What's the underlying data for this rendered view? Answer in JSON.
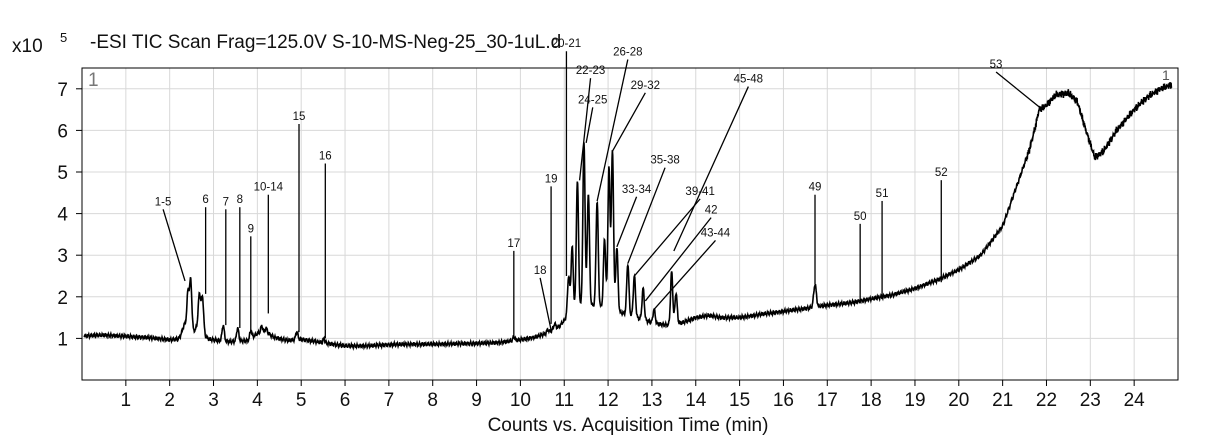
{
  "chart_data": {
    "type": "line",
    "title": "-ESI TIC Scan Frag=125.0V S-10-MS-Neg-25_30-1uL.d",
    "y_multiplier": "x10",
    "y_multiplier_exp": "5",
    "xlabel": "Counts vs. Acquisition Time (min)",
    "ylabel": "",
    "corner_label_left": "1",
    "corner_label_right": "1",
    "xlim": [
      0,
      25
    ],
    "ylim": [
      0,
      7.5
    ],
    "x_ticks": [
      1,
      2,
      3,
      4,
      5,
      6,
      7,
      8,
      9,
      10,
      11,
      12,
      13,
      14,
      15,
      16,
      17,
      18,
      19,
      20,
      21,
      22,
      23,
      24
    ],
    "y_ticks": [
      1,
      2,
      3,
      4,
      5,
      6,
      7
    ],
    "grid": true,
    "line_color": "#000000",
    "baseline": [
      [
        0.05,
        1.06
      ],
      [
        0.5,
        1.08
      ],
      [
        1.0,
        1.05
      ],
      [
        1.5,
        1.02
      ],
      [
        2.0,
        0.97
      ],
      [
        2.2,
        0.98
      ],
      [
        2.45,
        1.1
      ],
      [
        2.6,
        1.22
      ],
      [
        2.9,
        0.98
      ],
      [
        3.1,
        0.95
      ],
      [
        3.4,
        0.92
      ],
      [
        3.8,
        0.95
      ],
      [
        4.0,
        1.12
      ],
      [
        4.2,
        1.15
      ],
      [
        4.4,
        1.02
      ],
      [
        4.7,
        0.95
      ],
      [
        5.0,
        0.98
      ],
      [
        5.3,
        0.93
      ],
      [
        5.6,
        0.88
      ],
      [
        6.0,
        0.82
      ],
      [
        6.5,
        0.82
      ],
      [
        7.0,
        0.85
      ],
      [
        7.5,
        0.86
      ],
      [
        8.0,
        0.86
      ],
      [
        8.5,
        0.87
      ],
      [
        9.0,
        0.88
      ],
      [
        9.5,
        0.9
      ],
      [
        9.8,
        0.94
      ],
      [
        10.0,
        0.97
      ],
      [
        10.3,
        1.02
      ],
      [
        10.6,
        1.12
      ],
      [
        10.9,
        1.3
      ],
      [
        11.05,
        1.5
      ],
      [
        11.3,
        1.75
      ],
      [
        11.6,
        1.8
      ],
      [
        11.9,
        1.75
      ],
      [
        12.2,
        1.65
      ],
      [
        12.5,
        1.55
      ],
      [
        12.8,
        1.45
      ],
      [
        13.1,
        1.35
      ],
      [
        13.4,
        1.32
      ],
      [
        13.7,
        1.38
      ],
      [
        14.0,
        1.5
      ],
      [
        14.3,
        1.55
      ],
      [
        14.6,
        1.5
      ],
      [
        15.0,
        1.5
      ],
      [
        15.5,
        1.58
      ],
      [
        16.0,
        1.65
      ],
      [
        16.5,
        1.72
      ],
      [
        17.0,
        1.8
      ],
      [
        17.5,
        1.85
      ],
      [
        18.0,
        1.95
      ],
      [
        18.5,
        2.05
      ],
      [
        19.0,
        2.2
      ],
      [
        19.5,
        2.4
      ],
      [
        20.0,
        2.65
      ],
      [
        20.5,
        3.0
      ],
      [
        21.0,
        3.7
      ],
      [
        21.3,
        4.6
      ],
      [
        21.6,
        5.5
      ],
      [
        21.85,
        6.5
      ],
      [
        22.0,
        6.6
      ],
      [
        22.2,
        6.85
      ],
      [
        22.5,
        6.9
      ],
      [
        22.7,
        6.7
      ],
      [
        22.9,
        6.0
      ],
      [
        23.1,
        5.35
      ],
      [
        23.3,
        5.5
      ],
      [
        23.6,
        6.0
      ],
      [
        24.0,
        6.5
      ],
      [
        24.3,
        6.8
      ],
      [
        24.6,
        7.0
      ],
      [
        24.85,
        7.1
      ]
    ],
    "peaks": [
      [
        2.35,
        1.35,
        0.12
      ],
      [
        2.42,
        1.98,
        0.05
      ],
      [
        2.48,
        2.35,
        0.05
      ],
      [
        2.68,
        2.07,
        0.06
      ],
      [
        2.75,
        1.95,
        0.05
      ],
      [
        3.22,
        1.32,
        0.05
      ],
      [
        3.55,
        1.25,
        0.05
      ],
      [
        3.85,
        1.18,
        0.05
      ],
      [
        4.1,
        1.3,
        0.05
      ],
      [
        4.2,
        1.25,
        0.05
      ],
      [
        4.9,
        1.15,
        0.05
      ],
      [
        5.52,
        1.0,
        0.04
      ],
      [
        9.85,
        1.05,
        0.04
      ],
      [
        10.62,
        1.2,
        0.05
      ],
      [
        10.78,
        1.35,
        0.05
      ],
      [
        11.1,
        2.5,
        0.05
      ],
      [
        11.18,
        3.2,
        0.05
      ],
      [
        11.3,
        4.8,
        0.05
      ],
      [
        11.45,
        5.7,
        0.05
      ],
      [
        11.55,
        4.5,
        0.05
      ],
      [
        11.75,
        4.3,
        0.05
      ],
      [
        11.92,
        3.4,
        0.05
      ],
      [
        12.02,
        5.1,
        0.05
      ],
      [
        12.1,
        5.5,
        0.05
      ],
      [
        12.2,
        3.2,
        0.05
      ],
      [
        12.45,
        2.8,
        0.05
      ],
      [
        12.6,
        2.5,
        0.05
      ],
      [
        12.8,
        2.2,
        0.05
      ],
      [
        13.05,
        1.7,
        0.05
      ],
      [
        13.45,
        2.6,
        0.05
      ],
      [
        13.55,
        2.1,
        0.05
      ],
      [
        14.45,
        1.5,
        0.08
      ],
      [
        16.72,
        2.3,
        0.06
      ],
      [
        17.75,
        1.85,
        0.05
      ],
      [
        18.25,
        1.95,
        0.05
      ],
      [
        19.05,
        2.1,
        0.05
      ],
      [
        19.62,
        2.35,
        0.05
      ],
      [
        21.2,
        4.1,
        0.05
      ],
      [
        21.82,
        6.45,
        0.06
      ]
    ],
    "annotations": [
      {
        "text": "1-5",
        "x": 1.85,
        "y": 4.2,
        "tx": 2.35,
        "ty": 2.38
      },
      {
        "text": "6",
        "x": 2.82,
        "y": 4.25,
        "tx": 2.82,
        "ty": 2.07
      },
      {
        "text": "7",
        "x": 3.28,
        "y": 4.2,
        "tx": 3.28,
        "ty": 1.32
      },
      {
        "text": "8",
        "x": 3.6,
        "y": 4.25,
        "tx": 3.6,
        "ty": 1.25
      },
      {
        "text": "9",
        "x": 3.85,
        "y": 3.55,
        "tx": 3.85,
        "ty": 1.18
      },
      {
        "text": "10-14",
        "x": 4.25,
        "y": 4.55,
        "tx": 4.25,
        "ty": 1.6
      },
      {
        "text": "15",
        "x": 4.95,
        "y": 6.25,
        "tx": 4.95,
        "ty": 1.15
      },
      {
        "text": "16",
        "x": 5.55,
        "y": 5.3,
        "tx": 5.55,
        "ty": 1.0
      },
      {
        "text": "17",
        "x": 9.85,
        "y": 3.2,
        "tx": 9.85,
        "ty": 1.05
      },
      {
        "text": "18",
        "x": 10.45,
        "y": 2.55,
        "tx": 10.7,
        "ty": 1.2
      },
      {
        "text": "19",
        "x": 10.7,
        "y": 4.75,
        "tx": 10.7,
        "ty": 1.35
      },
      {
        "text": "20-21",
        "x": 11.05,
        "y": 8.0,
        "tx": 11.05,
        "ty": 2.5
      },
      {
        "text": "22-23",
        "x": 11.6,
        "y": 7.35,
        "tx": 11.35,
        "ty": 4.8
      },
      {
        "text": "24-25",
        "x": 11.65,
        "y": 6.65,
        "tx": 11.5,
        "ty": 5.7
      },
      {
        "text": "26-28",
        "x": 12.45,
        "y": 7.8,
        "tx": 11.75,
        "ty": 4.3
      },
      {
        "text": "29-32",
        "x": 12.85,
        "y": 7.0,
        "tx": 12.1,
        "ty": 5.5
      },
      {
        "text": "33-34",
        "x": 12.65,
        "y": 4.5,
        "tx": 12.2,
        "ty": 3.2
      },
      {
        "text": "35-38",
        "x": 13.3,
        "y": 5.2,
        "tx": 12.45,
        "ty": 2.8
      },
      {
        "text": "39-41",
        "x": 14.1,
        "y": 4.45,
        "tx": 12.6,
        "ty": 2.5
      },
      {
        "text": "42",
        "x": 14.35,
        "y": 4.0,
        "tx": 12.85,
        "ty": 1.9
      },
      {
        "text": "43-44",
        "x": 14.45,
        "y": 3.45,
        "tx": 13.05,
        "ty": 1.7
      },
      {
        "text": "45-48",
        "x": 15.2,
        "y": 7.15,
        "tx": 13.5,
        "ty": 3.1
      },
      {
        "text": "49",
        "x": 16.72,
        "y": 4.55,
        "tx": 16.72,
        "ty": 2.3
      },
      {
        "text": "50",
        "x": 17.75,
        "y": 3.85,
        "tx": 17.75,
        "ty": 1.85
      },
      {
        "text": "51",
        "x": 18.25,
        "y": 4.4,
        "tx": 18.25,
        "ty": 1.95
      },
      {
        "text": "52",
        "x": 19.6,
        "y": 4.9,
        "tx": 19.6,
        "ty": 2.35
      },
      {
        "text": "53",
        "x": 20.85,
        "y": 7.5,
        "tx": 21.85,
        "ty": 6.55
      }
    ]
  }
}
